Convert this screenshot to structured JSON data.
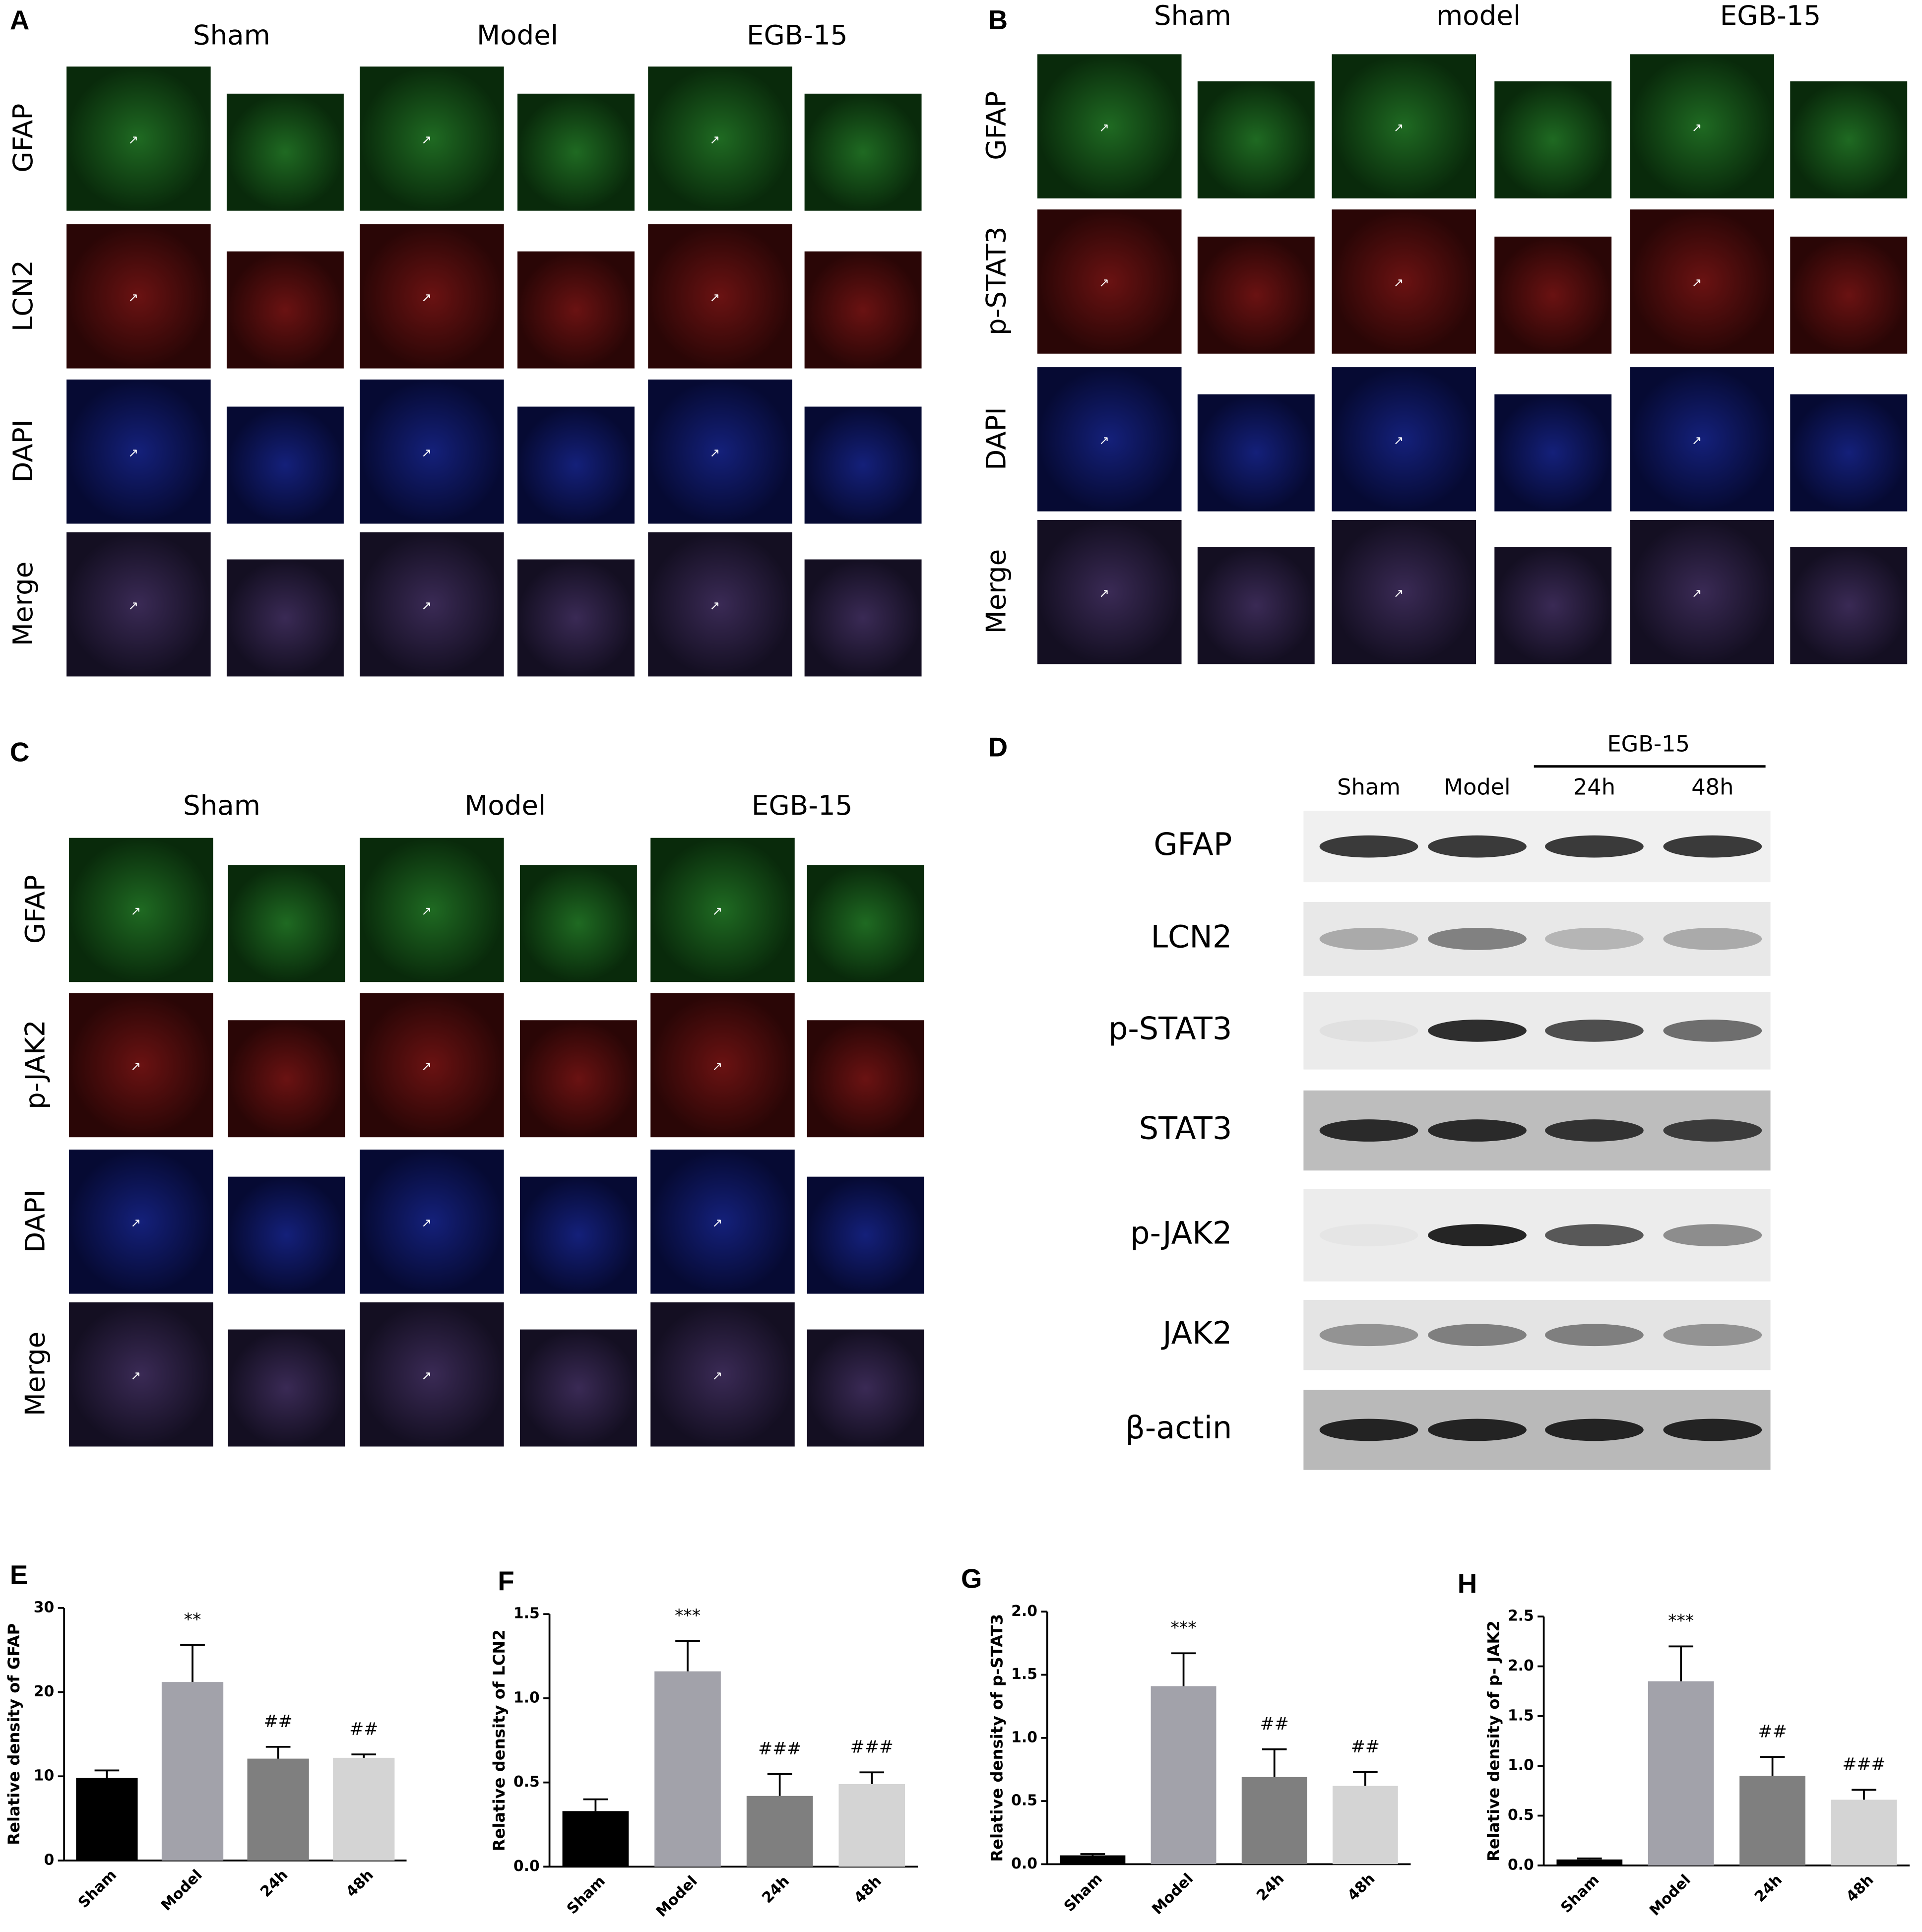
{
  "panels": [
    {
      "label": "A",
      "columns": [
        "Sham",
        "Model",
        "EGB-15"
      ],
      "rows": [
        "GFAP",
        "LCN2",
        "DAPI",
        "Merge"
      ]
    },
    {
      "label": "B",
      "columns": [
        "Sham",
        "model",
        "EGB-15"
      ],
      "rows": [
        "GFAP",
        "p-STAT3",
        "DAPI",
        "Merge"
      ]
    },
    {
      "label": "C",
      "columns": [
        "Sham",
        "Model",
        "EGB-15"
      ],
      "rows": [
        "GFAP",
        "p-JAK2",
        "DAPI",
        "Merge"
      ]
    }
  ],
  "blot": {
    "label": "D",
    "group": "EGB-15",
    "lanes": [
      "Sham",
      "Model",
      "24h",
      "48h"
    ],
    "proteins": [
      "GFAP",
      "LCN2",
      "p-STAT3",
      "STAT3",
      "p-JAK2",
      "JAK2",
      "β-actin"
    ]
  },
  "chart_data": [
    {
      "type": "bar",
      "panel": "E",
      "y_label": "Relative density of GFAP",
      "categories": [
        "Sham",
        "Model",
        "24h",
        "48h"
      ],
      "values": [
        9.8,
        21.2,
        12.1,
        12.2
      ],
      "errors": [
        0.9,
        4.4,
        1.4,
        0.4
      ],
      "annotations": [
        null,
        "**",
        "##",
        "##"
      ],
      "colors": [
        "#000000",
        "#a2a2aa",
        "#7f7f7f",
        "#d4d4d4"
      ],
      "ylim": [
        0,
        30
      ],
      "yticks": [
        0,
        10,
        20,
        30
      ]
    },
    {
      "type": "bar",
      "panel": "F",
      "y_label": "Relative density of LCN2",
      "categories": [
        "Sham",
        "Model",
        "24h",
        "48h"
      ],
      "values": [
        0.33,
        1.16,
        0.42,
        0.49
      ],
      "errors": [
        0.07,
        0.18,
        0.13,
        0.07
      ],
      "annotations": [
        null,
        "***",
        "###",
        "###"
      ],
      "colors": [
        "#000000",
        "#a2a2aa",
        "#7f7f7f",
        "#d4d4d4"
      ],
      "ylim": [
        0,
        1.5
      ],
      "yticks": [
        {
          "value": 0,
          "label": "0.0"
        },
        0.5,
        {
          "value": 1,
          "label": "1.0"
        },
        1.5
      ]
    },
    {
      "type": "bar",
      "panel": "G",
      "y_label": "Relative density of p-STAT3",
      "categories": [
        "Sham",
        "Model",
        "24h",
        "48h"
      ],
      "values": [
        0.07,
        1.41,
        0.69,
        0.62
      ],
      "errors": [
        0.01,
        0.26,
        0.22,
        0.11
      ],
      "annotations": [
        null,
        "***",
        "##",
        "##"
      ],
      "colors": [
        "#000000",
        "#a2a2aa",
        "#7f7f7f",
        "#d4d4d4"
      ],
      "ylim": [
        0,
        2
      ],
      "yticks": [
        {
          "value": 0,
          "label": "0.0"
        },
        0.5,
        {
          "value": 1,
          "label": "1.0"
        },
        1.5,
        {
          "value": 2,
          "label": "2.0"
        }
      ]
    },
    {
      "type": "bar",
      "panel": "H",
      "y_label": "Relative density of p- JAK2",
      "categories": [
        "Sham",
        "Model",
        "24h",
        "48h"
      ],
      "values": [
        0.06,
        1.85,
        0.9,
        0.66
      ],
      "errors": [
        0.01,
        0.35,
        0.19,
        0.1
      ],
      "annotations": [
        null,
        "***",
        "##",
        "###"
      ],
      "colors": [
        "#000000",
        "#a2a2aa",
        "#7f7f7f",
        "#d4d4d4"
      ],
      "ylim": [
        0,
        2.5
      ],
      "yticks": [
        {
          "value": 0,
          "label": "0.0"
        },
        0.5,
        {
          "value": 1,
          "label": "1.0"
        },
        1.5,
        {
          "value": 2,
          "label": "2.0"
        },
        2.5
      ]
    }
  ]
}
